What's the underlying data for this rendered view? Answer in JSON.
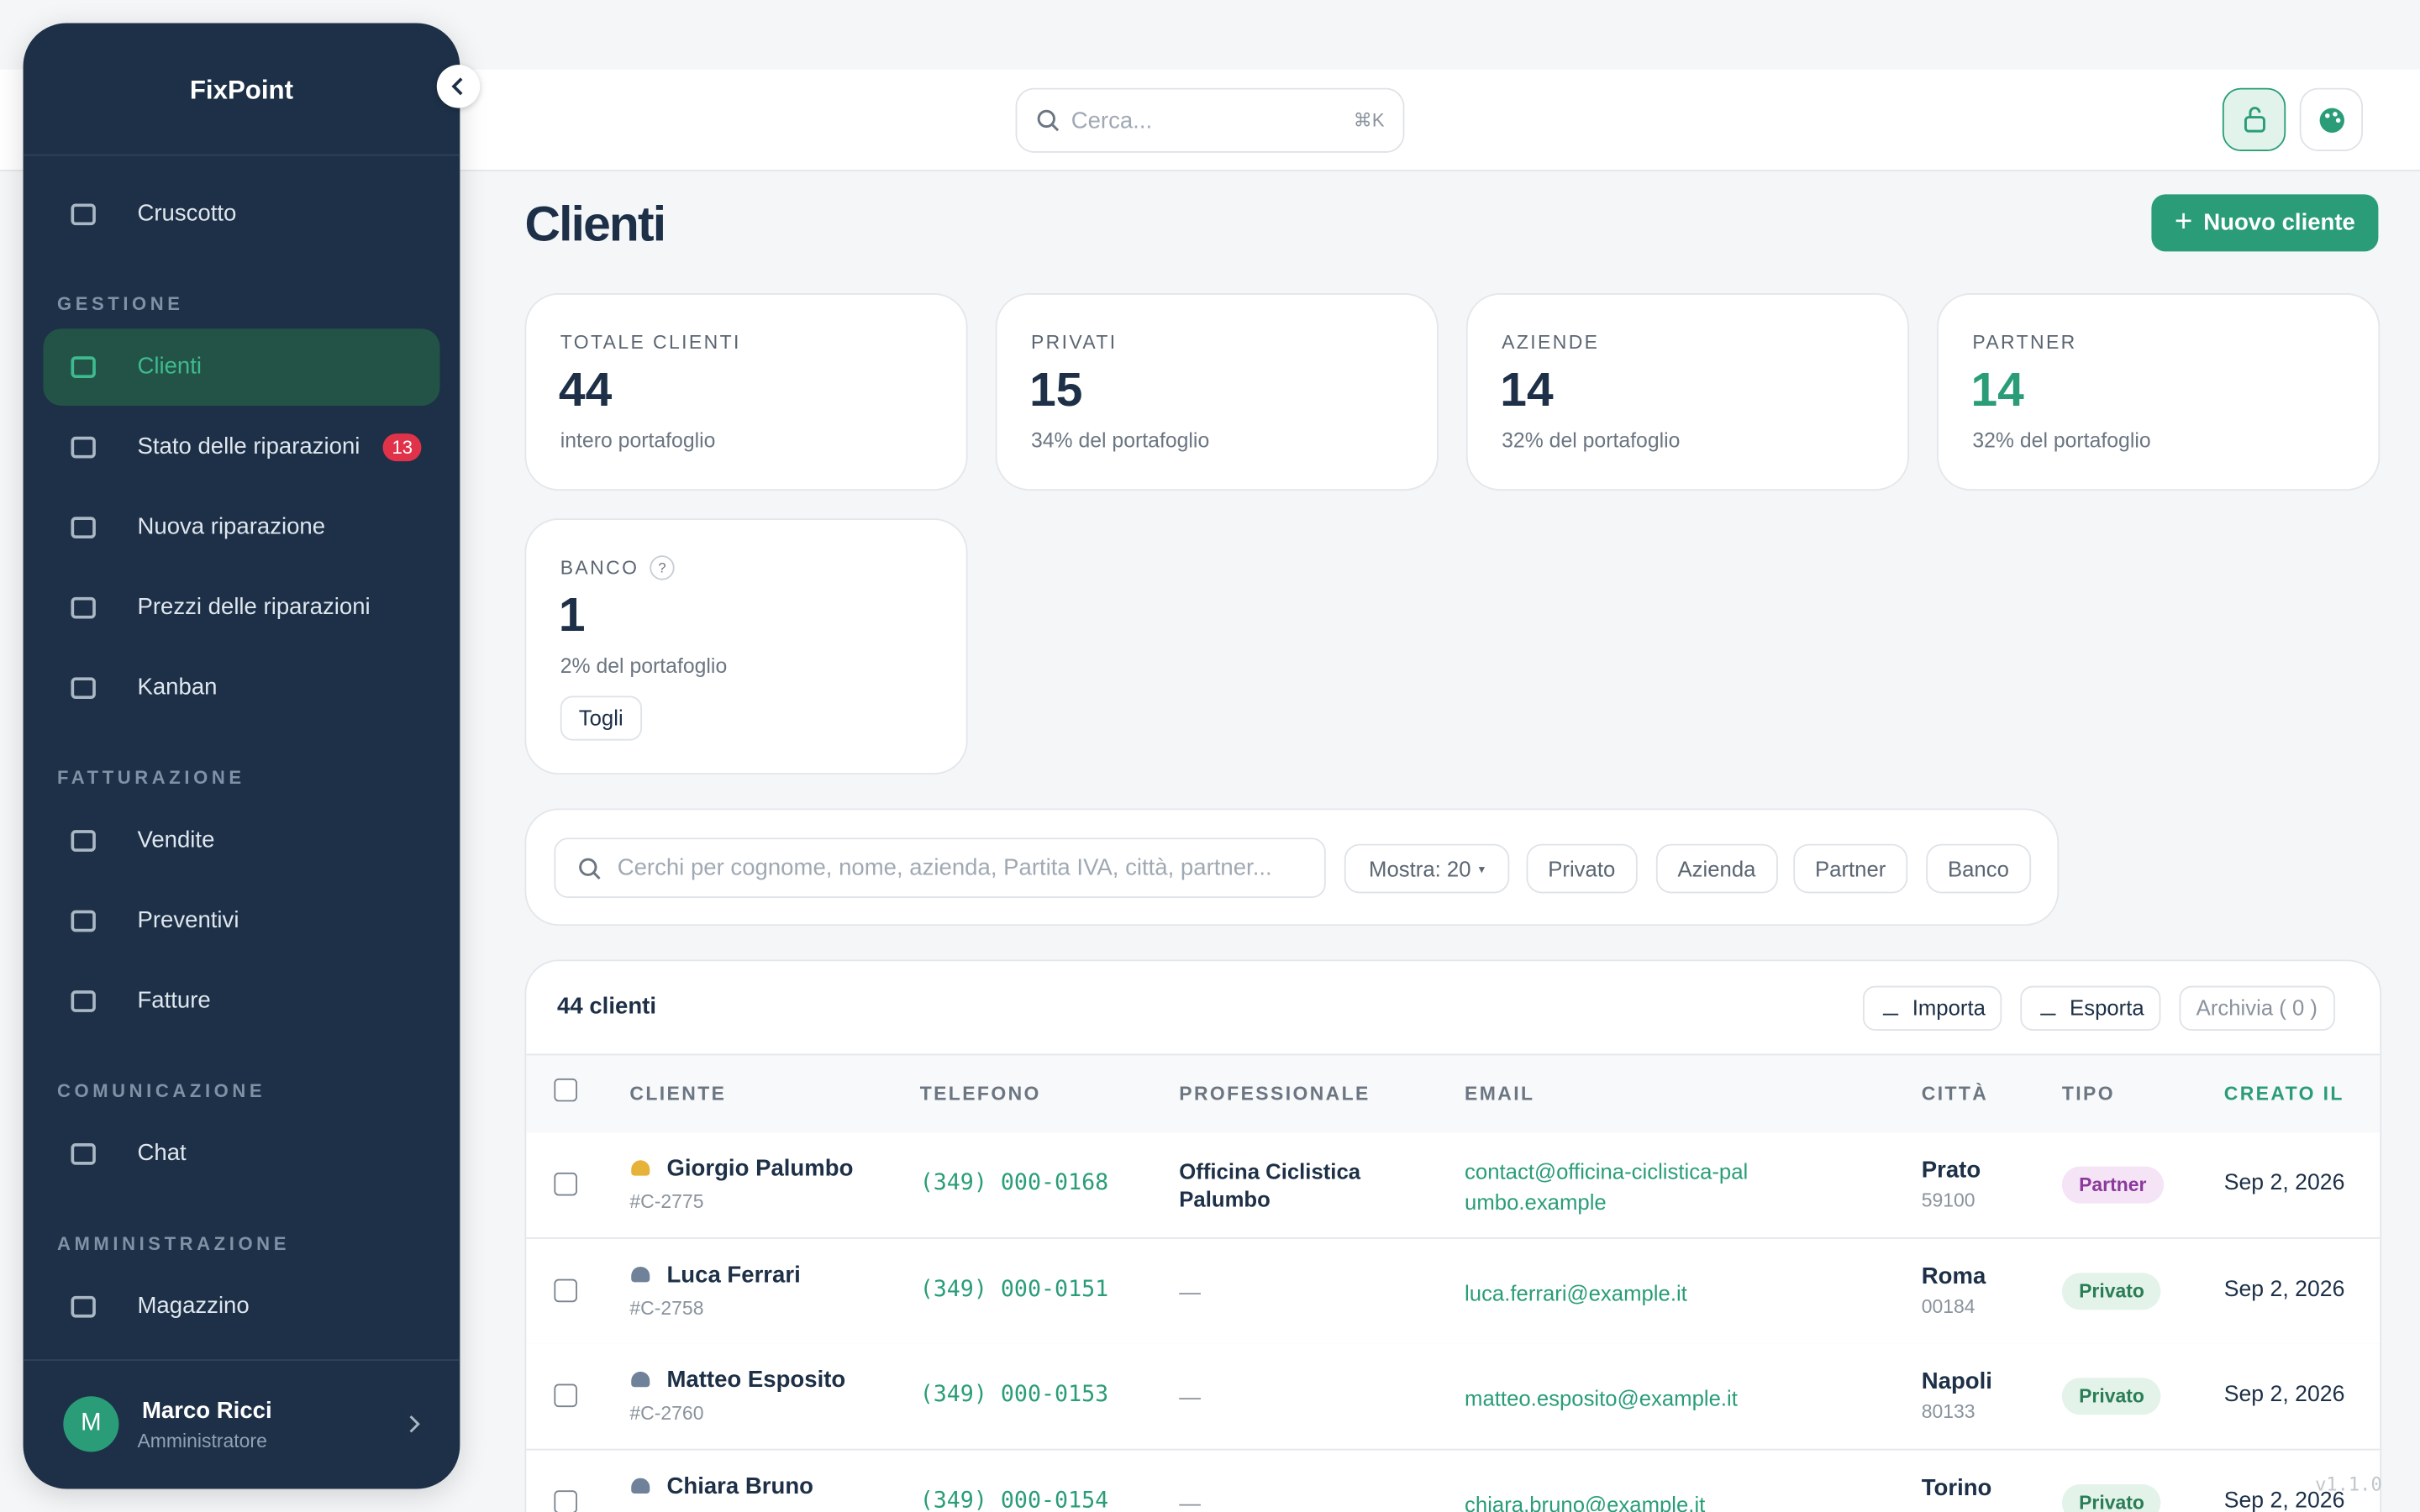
{
  "sidebar": {
    "brand": "FixPoint",
    "top_item": "Cruscotto",
    "sections": [
      {
        "heading": "GESTIONE",
        "items": [
          {
            "label": "Clienti"
          },
          {
            "label": "Stato delle riparazioni",
            "badge": "13"
          },
          {
            "label": "Nuova riparazione"
          },
          {
            "label": "Prezzi delle riparazioni"
          },
          {
            "label": "Kanban"
          }
        ]
      },
      {
        "heading": "FATTURAZIONE",
        "items": [
          {
            "label": "Vendite"
          },
          {
            "label": "Preventivi"
          },
          {
            "label": "Fatture"
          }
        ]
      },
      {
        "heading": "COMUNICAZIONE",
        "items": [
          {
            "label": "Chat"
          }
        ]
      },
      {
        "heading": "AMMINISTRAZIONE",
        "items": [
          {
            "label": "Magazzino"
          }
        ]
      }
    ],
    "user": {
      "initial": "M",
      "name": "Marco Ricci",
      "role": "Amministratore"
    }
  },
  "topbar": {
    "search_placeholder": "Cerca...",
    "shortcut": "⌘K"
  },
  "page": {
    "title": "Clienti",
    "new_button": "Nuovo cliente"
  },
  "stats": [
    {
      "label": "TOTALE CLIENTI",
      "value": 44,
      "note": "intero portafoglio"
    },
    {
      "label": "PRIVATI",
      "value": 15,
      "note": "34% del portafoglio"
    },
    {
      "label": "AZIENDE",
      "value": 14,
      "note": "32% del portafoglio"
    },
    {
      "label": "PARTNER",
      "value": 14,
      "note": "32% del portafoglio"
    },
    {
      "label": "BANCO",
      "help": "?",
      "value": 1,
      "note": "2% del portafoglio",
      "button": "Togli"
    }
  ],
  "filters": {
    "search_placeholder": "Cerchi per cognome, nome, azienda, Partita IVA, città, partner...",
    "show": "Mostra: 20",
    "chips": [
      "Privato",
      "Azienda",
      "Partner",
      "Banco"
    ]
  },
  "table": {
    "count_label": "44 clienti",
    "actions": [
      "Importa",
      "Esporta",
      "Archivia ( 0 )"
    ],
    "columns": [
      "CLIENTE",
      "TELEFONO",
      "PROFESSIONALE",
      "EMAIL",
      "CITTÀ",
      "TIPO",
      "CREATO IL"
    ],
    "rows": [
      {
        "name": "Giorgio Palumbo",
        "id": "#C-2775",
        "phone": "(349) 000-0168",
        "professional": "Officina Ciclistica Palumbo",
        "email": "contact@officina-ciclistica-palumbo.example",
        "city": "Prato",
        "zip": "59100",
        "type": "Partner",
        "created": "Sep 2, 2026"
      },
      {
        "name": "Luca Ferrari",
        "id": "#C-2758",
        "phone": "(349) 000-0151",
        "professional": "—",
        "email": "luca.ferrari@example.it",
        "city": "Roma",
        "zip": "00184",
        "type": "Privato",
        "created": "Sep 2, 2026"
      },
      {
        "name": "Matteo Esposito",
        "id": "#C-2760",
        "phone": "(349) 000-0153",
        "professional": "—",
        "email": "matteo.esposito@example.it",
        "city": "Napoli",
        "zip": "80133",
        "type": "Privato",
        "created": "Sep 2, 2026"
      },
      {
        "name": "Chiara Bruno",
        "phone": "(349) 000-0154",
        "professional": "—",
        "email": "chiara.bruno@example.it",
        "city": "Torino",
        "type": "Privato",
        "created": "Sep 2, 2026"
      }
    ]
  },
  "version": "v1.1.0"
}
